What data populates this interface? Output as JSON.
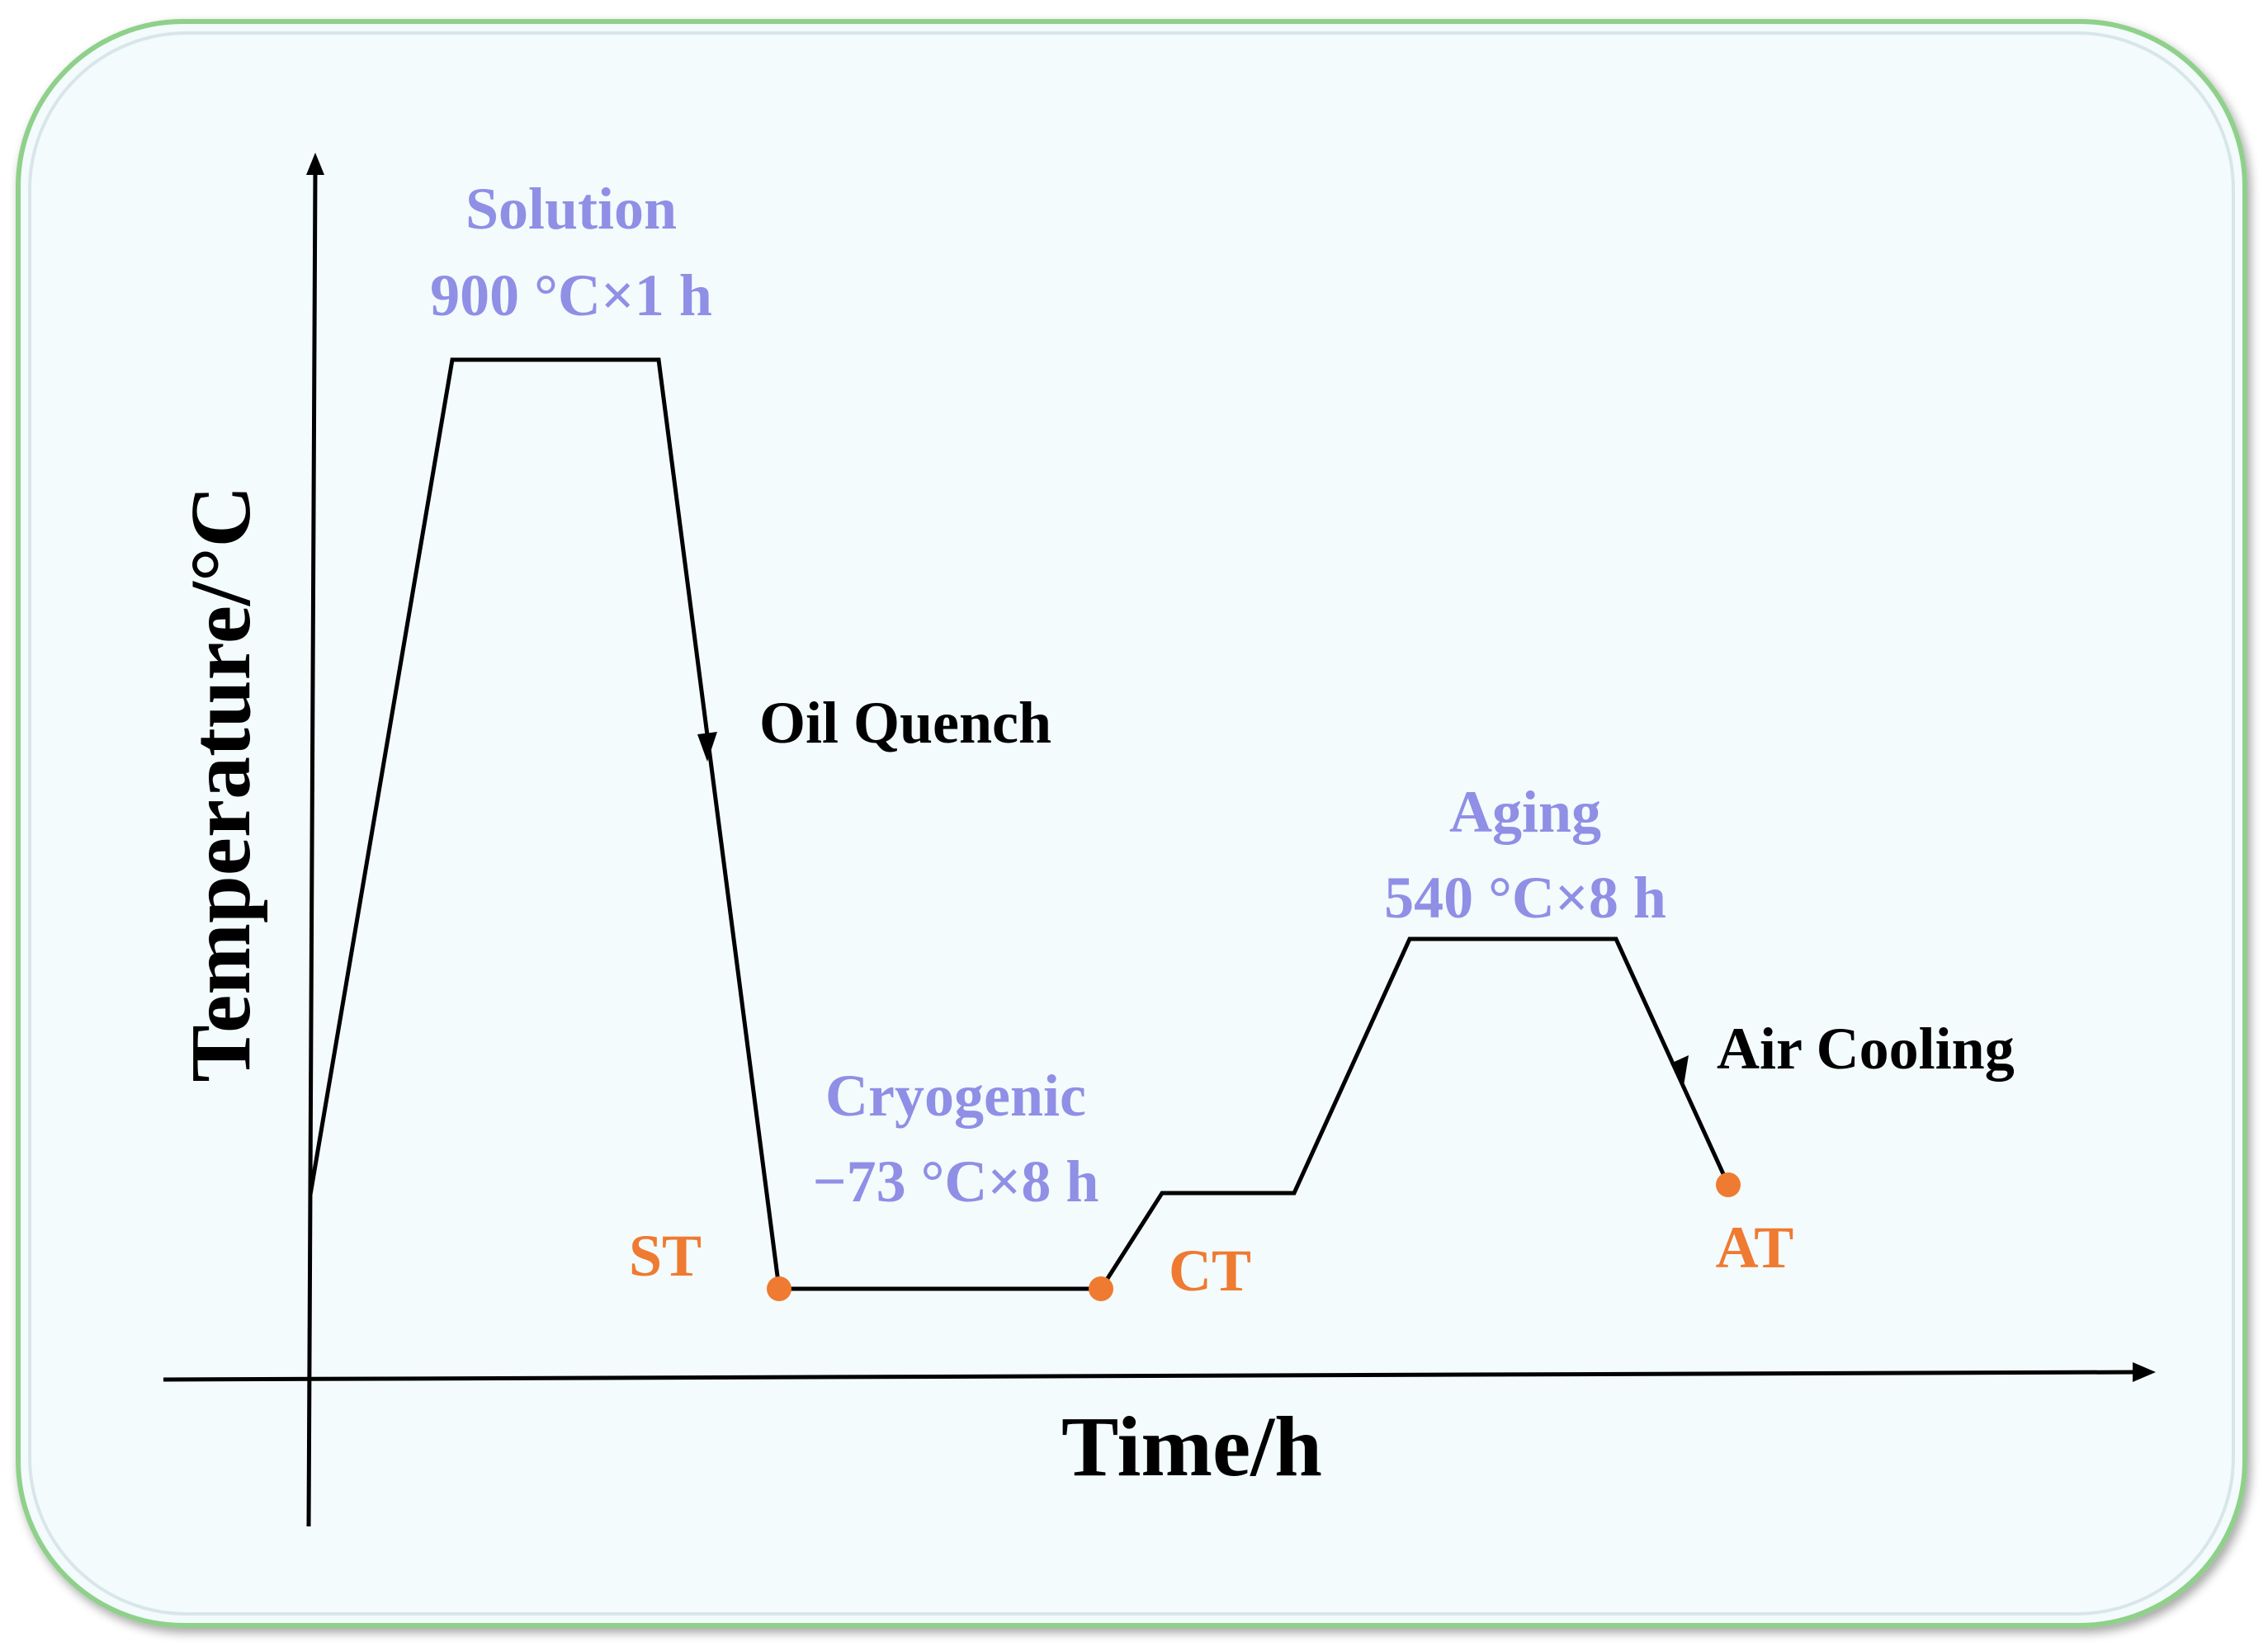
{
  "axes": {
    "x_label": "Time/h",
    "y_label": "Temperature/°C"
  },
  "stages": {
    "solution": {
      "name": "Solution",
      "condition": "900 °C×1 h"
    },
    "quench": {
      "name": "Oil Quench"
    },
    "cryogenic": {
      "name": "Cryogenic",
      "condition": "−73 °C×8 h"
    },
    "aging": {
      "name": "Aging",
      "condition": "540 °C×8 h"
    },
    "cooling": {
      "name": "Air Cooling"
    }
  },
  "points": {
    "st": "ST",
    "ct": "CT",
    "at": "AT"
  },
  "colors": {
    "stage_text": "#8f8fe6",
    "point": "#ef7a31",
    "line": "#000000",
    "panel_fill": "#f3fbfc",
    "panel_border": "#8fd08a"
  }
}
